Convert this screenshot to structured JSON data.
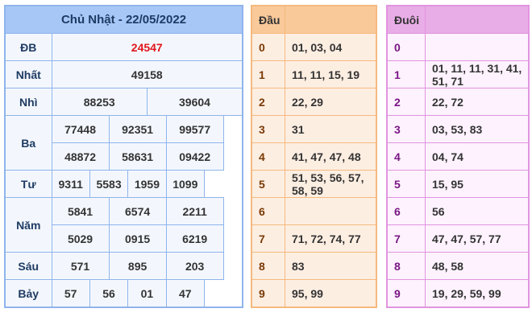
{
  "results": {
    "title": "Chủ Nhật - 22/05/2022",
    "prizes": [
      {
        "label": "ĐB",
        "rows": [
          [
            "24547"
          ]
        ]
      },
      {
        "label": "Nhất",
        "rows": [
          [
            "49158"
          ]
        ]
      },
      {
        "label": "Nhì",
        "rows": [
          [
            "88253",
            "39604"
          ]
        ]
      },
      {
        "label": "Ba",
        "rows": [
          [
            "77448",
            "92351",
            "99577"
          ],
          [
            "48872",
            "58631",
            "09422"
          ]
        ]
      },
      {
        "label": "Tư",
        "rows": [
          [
            "9311",
            "5583",
            "1959",
            "1099"
          ]
        ]
      },
      {
        "label": "Năm",
        "rows": [
          [
            "5841",
            "6574",
            "2211"
          ],
          [
            "5029",
            "0915",
            "6219"
          ]
        ]
      },
      {
        "label": "Sáu",
        "rows": [
          [
            "571",
            "895",
            "203"
          ]
        ]
      },
      {
        "label": "Bảy",
        "rows": [
          [
            "57",
            "56",
            "01",
            "47"
          ]
        ]
      }
    ],
    "special_color": "#e0161b"
  },
  "dau": {
    "header": "Đầu",
    "rows": [
      {
        "k": "0",
        "v": "01, 03, 04"
      },
      {
        "k": "1",
        "v": "11, 11, 15, 19"
      },
      {
        "k": "2",
        "v": "22, 29"
      },
      {
        "k": "3",
        "v": "31"
      },
      {
        "k": "4",
        "v": "41, 47, 47, 48"
      },
      {
        "k": "5",
        "v": "51, 53, 56, 57, 58, 59"
      },
      {
        "k": "6",
        "v": ""
      },
      {
        "k": "7",
        "v": "71, 72, 74, 77"
      },
      {
        "k": "8",
        "v": "83"
      },
      {
        "k": "9",
        "v": "95, 99"
      }
    ]
  },
  "duoi": {
    "header": "Đuôi",
    "rows": [
      {
        "k": "0",
        "v": ""
      },
      {
        "k": "1",
        "v": "01, 11, 11, 31, 41, 51, 71"
      },
      {
        "k": "2",
        "v": "22, 72"
      },
      {
        "k": "3",
        "v": "03, 53, 83"
      },
      {
        "k": "4",
        "v": "04, 74"
      },
      {
        "k": "5",
        "v": "15, 95"
      },
      {
        "k": "6",
        "v": "56"
      },
      {
        "k": "7",
        "v": "47, 47, 57, 77"
      },
      {
        "k": "8",
        "v": "48, 58"
      },
      {
        "k": "9",
        "v": "19, 29, 59, 99"
      }
    ]
  }
}
